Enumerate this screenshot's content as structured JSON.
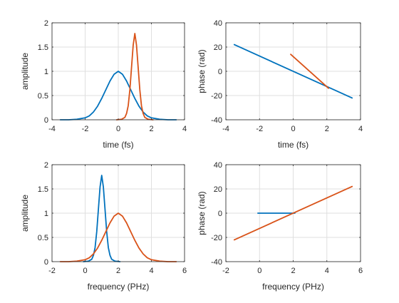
{
  "chart_data": [
    {
      "type": "line",
      "xlabel": "time (fs)",
      "ylabel": "amplitude",
      "xlim": [
        -4,
        4
      ],
      "ylim": [
        0,
        2
      ],
      "xticks": [
        -4,
        -2,
        0,
        2,
        4
      ],
      "yticks": [
        0,
        0.5,
        1,
        1.5,
        2
      ],
      "xtick_labels": [
        "-4",
        "-2",
        "0",
        "2",
        "4"
      ],
      "ytick_labels": [
        "0",
        "0.5",
        "1",
        "1.5",
        "2"
      ],
      "grid": true,
      "series": [
        {
          "color": "#0072BD",
          "x": [
            -3.5,
            -3.0,
            -2.5,
            -2.0,
            -1.75,
            -1.5,
            -1.25,
            -1.0,
            -0.75,
            -0.5,
            -0.25,
            0.0,
            0.25,
            0.5,
            0.75,
            1.0,
            1.25,
            1.5,
            1.75,
            2.0,
            2.5,
            3.0,
            3.5
          ],
          "y": [
            0.0,
            0.0,
            0.01,
            0.04,
            0.08,
            0.16,
            0.28,
            0.44,
            0.62,
            0.8,
            0.94,
            1.0,
            0.94,
            0.8,
            0.62,
            0.44,
            0.28,
            0.16,
            0.08,
            0.04,
            0.01,
            0.0,
            0.0
          ]
        },
        {
          "color": "#D95319",
          "x": [
            -0.1,
            0.2,
            0.4,
            0.5,
            0.6,
            0.7,
            0.8,
            0.9,
            1.0,
            1.1,
            1.2,
            1.3,
            1.4,
            1.5,
            1.6,
            1.8,
            2.1
          ],
          "y": [
            0.0,
            0.01,
            0.05,
            0.13,
            0.29,
            0.62,
            1.08,
            1.54,
            1.78,
            1.54,
            1.08,
            0.62,
            0.29,
            0.13,
            0.05,
            0.01,
            0.0
          ]
        }
      ]
    },
    {
      "type": "line",
      "xlabel": "time (fs)",
      "ylabel": "phase (rad)",
      "xlim": [
        -4,
        4
      ],
      "ylim": [
        -40,
        40
      ],
      "xticks": [
        -4,
        -2,
        0,
        2,
        4
      ],
      "yticks": [
        -40,
        -20,
        0,
        20,
        40
      ],
      "xtick_labels": [
        "-4",
        "-2",
        "0",
        "2",
        "4"
      ],
      "ytick_labels": [
        "-40",
        "-20",
        "0",
        "20",
        "40"
      ],
      "grid": true,
      "series": [
        {
          "color": "#0072BD",
          "x": [
            -3.5,
            3.5
          ],
          "y": [
            22,
            -22
          ]
        },
        {
          "color": "#D95319",
          "x": [
            -0.15,
            2.1
          ],
          "y": [
            14,
            -14
          ]
        }
      ]
    },
    {
      "type": "line",
      "xlabel": "frequency (PHz)",
      "ylabel": "amplitude",
      "xlim": [
        -2,
        6
      ],
      "ylim": [
        0,
        2
      ],
      "xticks": [
        -2,
        0,
        2,
        4,
        6
      ],
      "yticks": [
        0,
        0.5,
        1,
        1.5,
        2
      ],
      "xtick_labels": [
        "-2",
        "0",
        "2",
        "4",
        "6"
      ],
      "ytick_labels": [
        "0",
        "0.5",
        "1",
        "1.5",
        "2"
      ],
      "grid": true,
      "series": [
        {
          "color": "#0072BD",
          "x": [
            -0.1,
            0.2,
            0.4,
            0.5,
            0.6,
            0.7,
            0.8,
            0.9,
            1.0,
            1.1,
            1.2,
            1.3,
            1.4,
            1.5,
            1.6,
            1.8,
            2.1
          ],
          "y": [
            0.0,
            0.01,
            0.05,
            0.13,
            0.29,
            0.62,
            1.08,
            1.54,
            1.78,
            1.54,
            1.08,
            0.62,
            0.29,
            0.13,
            0.05,
            0.01,
            0.0
          ]
        },
        {
          "color": "#D95319",
          "x": [
            -1.5,
            -1.0,
            -0.5,
            0.0,
            0.25,
            0.5,
            0.75,
            1.0,
            1.25,
            1.5,
            1.75,
            2.0,
            2.25,
            2.5,
            2.75,
            3.0,
            3.25,
            3.5,
            3.75,
            4.0,
            4.5,
            5.0,
            5.5
          ],
          "y": [
            0.0,
            0.0,
            0.01,
            0.04,
            0.08,
            0.16,
            0.28,
            0.44,
            0.62,
            0.8,
            0.94,
            1.0,
            0.94,
            0.8,
            0.62,
            0.44,
            0.28,
            0.16,
            0.08,
            0.04,
            0.01,
            0.0,
            0.0
          ]
        }
      ]
    },
    {
      "type": "line",
      "xlabel": "frequency (PHz)",
      "ylabel": "phase (rad)",
      "xlim": [
        -2,
        6
      ],
      "ylim": [
        -40,
        40
      ],
      "xticks": [
        -2,
        0,
        2,
        4,
        6
      ],
      "yticks": [
        -40,
        -20,
        0,
        20,
        40
      ],
      "xtick_labels": [
        "-2",
        "0",
        "2",
        "4",
        "6"
      ],
      "ytick_labels": [
        "-40",
        "-20",
        "0",
        "20",
        "40"
      ],
      "grid": true,
      "series": [
        {
          "color": "#0072BD",
          "x": [
            -0.1,
            2.1
          ],
          "y": [
            0,
            0
          ]
        },
        {
          "color": "#D95319",
          "x": [
            -1.5,
            5.5
          ],
          "y": [
            -22,
            22
          ]
        }
      ]
    }
  ]
}
